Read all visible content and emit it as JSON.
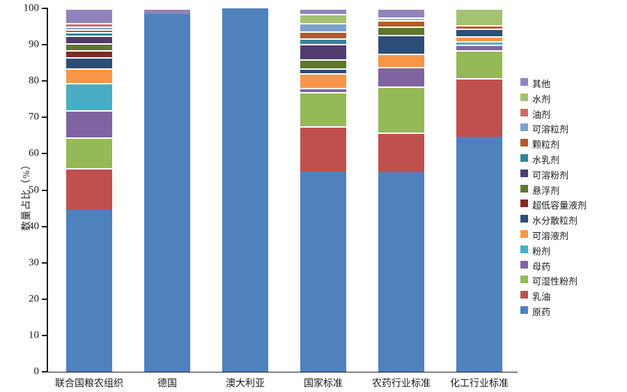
{
  "chart_data": {
    "type": "bar",
    "stacked": true,
    "orientation": "vertical",
    "ylabel": "数量占比（%）",
    "xlabel": "",
    "title": "",
    "ylim": [
      0,
      100
    ],
    "yticks": [
      0,
      10,
      20,
      30,
      40,
      50,
      60,
      70,
      80,
      90,
      100
    ],
    "grid": false,
    "legend_position": "right",
    "categories": [
      "联合国粮农组织",
      "德国",
      "澳大利亚",
      "国家标准",
      "农药行业标准",
      "化工行业标准"
    ],
    "series": [
      {
        "name": "原药",
        "color": "#4f81bd",
        "values": [
          44.5,
          98.5,
          100,
          55.0,
          54.9,
          64.6
        ]
      },
      {
        "name": "乳油",
        "color": "#c0504d",
        "values": [
          11.5,
          0,
          0,
          12.6,
          10.9,
          16.2
        ]
      },
      {
        "name": "可湿性粉剂",
        "color": "#94b957",
        "values": [
          8.5,
          0,
          0,
          9.3,
          12.7,
          7.7
        ]
      },
      {
        "name": "母药",
        "color": "#8064a2",
        "values": [
          7.5,
          0,
          0,
          1.3,
          5.3,
          1.5
        ]
      },
      {
        "name": "粉剂",
        "color": "#4bacc6",
        "values": [
          7.5,
          0,
          0,
          0,
          0,
          0.9
        ]
      },
      {
        "name": "可溶液剂",
        "color": "#f79646",
        "values": [
          4.0,
          0,
          0,
          4.0,
          3.7,
          1.5
        ]
      },
      {
        "name": "水分散粒剂",
        "color": "#2d4d76",
        "values": [
          3.0,
          0,
          0,
          1.3,
          5.3,
          2.1
        ]
      },
      {
        "name": "超低容量液剂",
        "color": "#7f2a29",
        "values": [
          2.0,
          0,
          0,
          0,
          0,
          0
        ]
      },
      {
        "name": "悬浮剂",
        "color": "#5f7530",
        "values": [
          2.0,
          0,
          0,
          2.5,
          2.3,
          0
        ]
      },
      {
        "name": "可溶粉剂",
        "color": "#503d6e",
        "values": [
          2.0,
          0,
          0,
          4.3,
          0,
          0
        ]
      },
      {
        "name": "水乳剂",
        "color": "#31859c",
        "values": [
          1.0,
          0,
          0,
          1.4,
          0,
          0
        ]
      },
      {
        "name": "颗粒剂",
        "color": "#b65a29",
        "values": [
          0.8,
          0,
          0,
          2.0,
          1.7,
          0.9
        ]
      },
      {
        "name": "可溶粒剂",
        "color": "#7ba2cf",
        "values": [
          0.8,
          0,
          0,
          2.3,
          0,
          0
        ]
      },
      {
        "name": "油剂",
        "color": "#cd6a68",
        "values": [
          0.9,
          0,
          0,
          0,
          0,
          0
        ]
      },
      {
        "name": "水剂",
        "color": "#a5c172",
        "values": [
          0,
          0,
          0,
          2.4,
          0.7,
          4.6
        ]
      },
      {
        "name": "其他",
        "color": "#9282bc",
        "values": [
          4.0,
          1.5,
          0,
          1.6,
          2.5,
          0
        ]
      }
    ]
  }
}
